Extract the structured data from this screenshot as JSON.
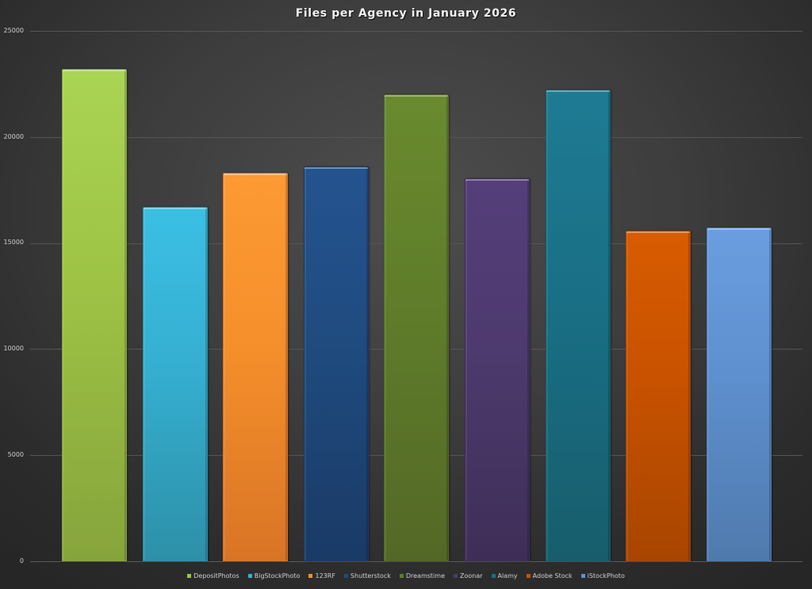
{
  "chart_data": {
    "type": "bar",
    "title": "Files per Agency in January  2026",
    "xlabel": "",
    "ylabel": "",
    "ylim": [
      0,
      25000
    ],
    "yticks": [
      0,
      5000,
      10000,
      15000,
      20000,
      25000
    ],
    "grid": true,
    "legend_position": "bottom",
    "categories": [
      "DepositPhotos",
      "BigStockPhoto",
      "123RF",
      "Shutterstock",
      "Dreamstime",
      "Zoonar",
      "Alamy",
      "Adobe Stock",
      "iStockPhoto"
    ],
    "values": [
      23200,
      16700,
      18300,
      18600,
      22000,
      18050,
      22250,
      15600,
      15750
    ],
    "colors": [
      "#9dc244",
      "#35afd1",
      "#f58f2b",
      "#1f4b7f",
      "#5f7d2a",
      "#4d3a6e",
      "#196f85",
      "#c85200",
      "#5e8fce"
    ],
    "colors_top": [
      "#aad454",
      "#3bbfe4",
      "#fd9a33",
      "#24538f",
      "#6a8a2e",
      "#553e7a",
      "#1e7b93",
      "#d85c00",
      "#6a9ee0"
    ],
    "colors_bottom": [
      "#86a43c",
      "#2d90a8",
      "#d97426",
      "#1a3a66",
      "#536826",
      "#3e2e57",
      "#175d6c",
      "#a84500",
      "#4f7aad"
    ]
  },
  "title": "Files per Agency in January  2026",
  "y_axis": {
    "labels": [
      "25000",
      "20000",
      "15000",
      "10000",
      "5000",
      "0"
    ]
  },
  "legend": [
    {
      "label": "DepositPhotos",
      "color": "#9dc244"
    },
    {
      "label": "BigStockPhoto",
      "color": "#35afd1"
    },
    {
      "label": "123RF",
      "color": "#f58f2b"
    },
    {
      "label": "Shutterstock",
      "color": "#1f4b7f"
    },
    {
      "label": "Dreamstime",
      "color": "#5f7d2a"
    },
    {
      "label": "Zoonar",
      "color": "#4d3a6e"
    },
    {
      "label": "Alamy",
      "color": "#196f85"
    },
    {
      "label": "Adobe Stock",
      "color": "#c85200"
    },
    {
      "label": "iStockPhoto",
      "color": "#5e8fce"
    }
  ]
}
